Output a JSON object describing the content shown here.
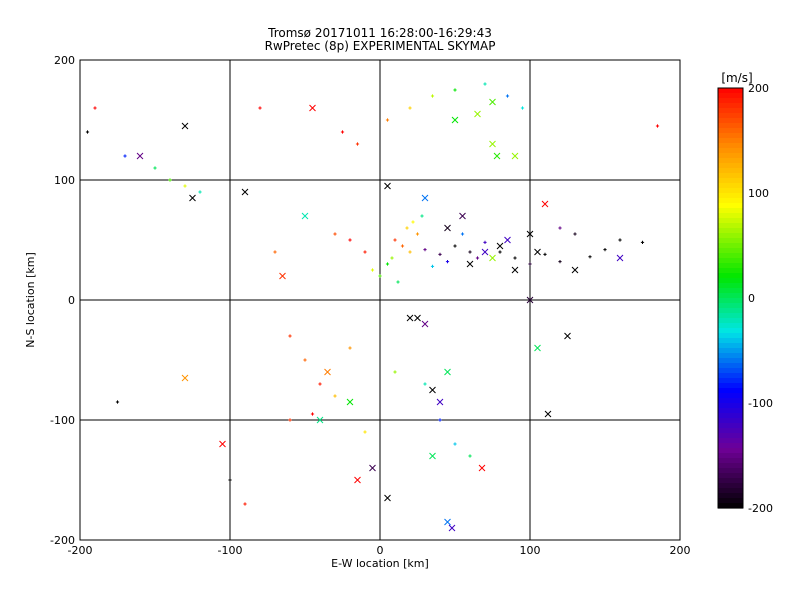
{
  "chart_data": {
    "type": "scatter",
    "title": "Tromsø 20171011 16:28:00-16:29:43",
    "subtitle": "RwPretec (8p) EXPERIMENTAL SKYMAP",
    "xlabel": "E-W location [km]",
    "ylabel": "N-S location [km]",
    "xlim": [
      -200,
      200
    ],
    "ylim": [
      -200,
      200
    ],
    "x_ticks": [
      -200,
      -100,
      0,
      100,
      200
    ],
    "y_ticks": [
      -200,
      -100,
      0,
      100,
      200
    ],
    "grid": true,
    "colorbar": {
      "label": "[m/s]",
      "range": [
        -200,
        200
      ],
      "ticks": [
        200,
        100,
        0,
        -100,
        -200
      ],
      "colormap": "black-purple-blue-cyan-green-yellow-red"
    },
    "series": [
      {
        "marker": "plus",
        "points": [
          [
            10,
            50,
            180
          ],
          [
            15,
            45,
            160
          ],
          [
            20,
            40,
            120
          ],
          [
            8,
            35,
            60
          ],
          [
            5,
            30,
            20
          ],
          [
            25,
            55,
            140
          ],
          [
            30,
            42,
            -150
          ],
          [
            40,
            38,
            -170
          ],
          [
            50,
            45,
            -200
          ],
          [
            60,
            40,
            -190
          ],
          [
            70,
            48,
            -120
          ],
          [
            45,
            32,
            -100
          ],
          [
            35,
            28,
            -40
          ],
          [
            -10,
            40,
            190
          ],
          [
            -20,
            50,
            200
          ],
          [
            -30,
            55,
            170
          ],
          [
            -5,
            25,
            80
          ],
          [
            0,
            20,
            40
          ],
          [
            12,
            15,
            0
          ],
          [
            18,
            60,
            110
          ],
          [
            22,
            65,
            90
          ],
          [
            28,
            70,
            -10
          ],
          [
            55,
            55,
            -60
          ],
          [
            65,
            35,
            -150
          ],
          [
            80,
            40,
            -200
          ],
          [
            90,
            35,
            -200
          ],
          [
            100,
            30,
            -180
          ],
          [
            110,
            38,
            -200
          ],
          [
            120,
            32,
            -190
          ],
          [
            140,
            36,
            -200
          ],
          [
            150,
            42,
            -200
          ],
          [
            -25,
            140,
            200
          ],
          [
            -15,
            130,
            180
          ],
          [
            5,
            150,
            150
          ],
          [
            20,
            160,
            110
          ],
          [
            35,
            170,
            70
          ],
          [
            50,
            175,
            20
          ],
          [
            70,
            180,
            -20
          ],
          [
            85,
            170,
            -60
          ],
          [
            95,
            160,
            -30
          ],
          [
            -170,
            120,
            -80
          ],
          [
            -150,
            110,
            0
          ],
          [
            -140,
            100,
            40
          ],
          [
            -130,
            95,
            80
          ],
          [
            -120,
            90,
            -20
          ],
          [
            -60,
            -30,
            180
          ],
          [
            -50,
            -50,
            160
          ],
          [
            -40,
            -70,
            190
          ],
          [
            -30,
            -80,
            120
          ],
          [
            -45,
            -95,
            200
          ],
          [
            -20,
            -40,
            140
          ],
          [
            10,
            -60,
            60
          ],
          [
            30,
            -70,
            -20
          ],
          [
            40,
            -100,
            -80
          ],
          [
            50,
            -120,
            -40
          ],
          [
            60,
            -130,
            0
          ],
          [
            -10,
            -110,
            100
          ],
          [
            -100,
            -150,
            -200
          ],
          [
            -90,
            -170,
            190
          ],
          [
            -60,
            -100,
            180
          ],
          [
            120,
            60,
            -150
          ],
          [
            130,
            55,
            -190
          ],
          [
            160,
            50,
            -200
          ],
          [
            175,
            48,
            -200
          ],
          [
            -80,
            160,
            200
          ],
          [
            -190,
            160,
            200
          ],
          [
            -175,
            -85,
            -200
          ],
          [
            -195,
            140,
            -200
          ],
          [
            185,
            145,
            200
          ],
          [
            -70,
            40,
            160
          ]
        ]
      },
      {
        "marker": "cross",
        "points": [
          [
            -35,
            -60,
            150
          ],
          [
            -125,
            85,
            -200
          ],
          [
            -160,
            120,
            -150
          ],
          [
            -130,
            145,
            -200
          ],
          [
            -90,
            90,
            -200
          ],
          [
            -65,
            20,
            180
          ],
          [
            -130,
            -65,
            140
          ],
          [
            -105,
            -120,
            200
          ],
          [
            -50,
            70,
            -20
          ],
          [
            -45,
            160,
            200
          ],
          [
            45,
            60,
            -190
          ],
          [
            55,
            70,
            -170
          ],
          [
            60,
            30,
            -200
          ],
          [
            70,
            40,
            -120
          ],
          [
            80,
            45,
            -200
          ],
          [
            75,
            35,
            60
          ],
          [
            85,
            50,
            -120
          ],
          [
            90,
            25,
            -200
          ],
          [
            100,
            55,
            -200
          ],
          [
            105,
            40,
            -200
          ],
          [
            130,
            25,
            -200
          ],
          [
            160,
            35,
            -120
          ],
          [
            110,
            80,
            200
          ],
          [
            125,
            -30,
            -200
          ],
          [
            75,
            130,
            60
          ],
          [
            5,
            95,
            -200
          ],
          [
            20,
            -15,
            -200
          ],
          [
            25,
            -15,
            -200
          ],
          [
            30,
            -20,
            -150
          ],
          [
            45,
            -60,
            0
          ],
          [
            40,
            -85,
            -120
          ],
          [
            35,
            -75,
            -200
          ],
          [
            48,
            -190,
            -120
          ],
          [
            45,
            -185,
            -60
          ],
          [
            5,
            -165,
            -200
          ],
          [
            68,
            -140,
            200
          ],
          [
            -5,
            -140,
            -170
          ],
          [
            35,
            -130,
            0
          ],
          [
            30,
            85,
            -60
          ],
          [
            65,
            155,
            60
          ],
          [
            50,
            150,
            20
          ],
          [
            90,
            120,
            60
          ],
          [
            75,
            165,
            40
          ],
          [
            78,
            120,
            30
          ],
          [
            -20,
            -85,
            20
          ],
          [
            -40,
            -100,
            -10
          ],
          [
            -15,
            -150,
            200
          ],
          [
            100,
            0,
            -180
          ],
          [
            105,
            -40,
            0
          ],
          [
            112,
            -95,
            -200
          ]
        ]
      }
    ]
  }
}
